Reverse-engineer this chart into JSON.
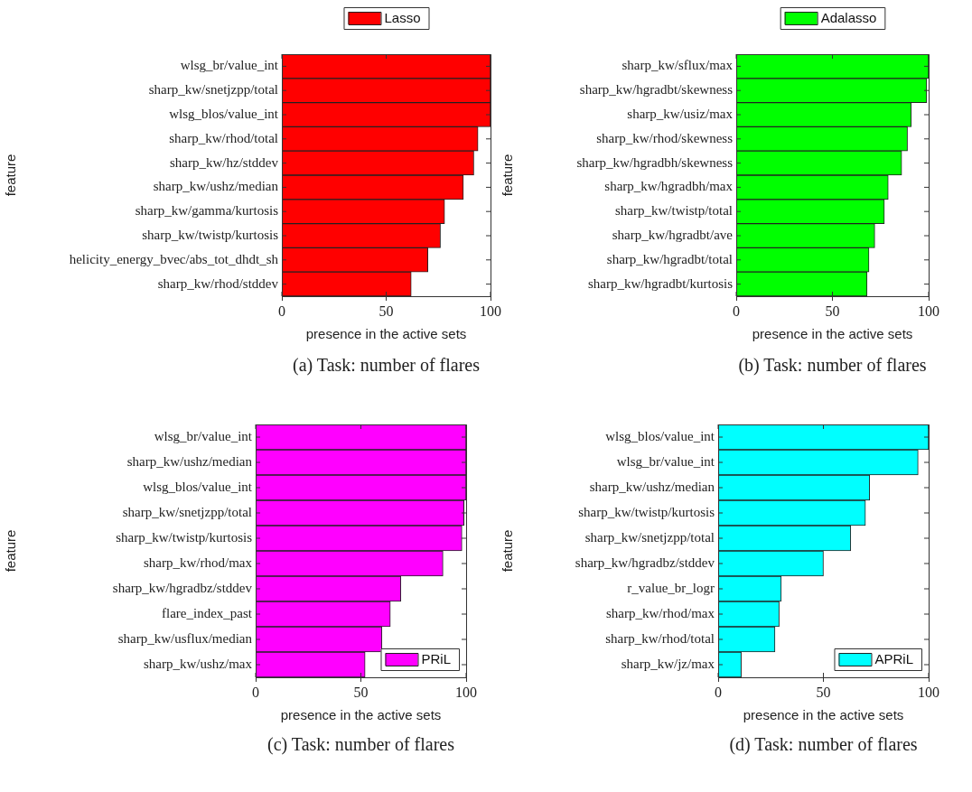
{
  "chart_data": [
    {
      "type": "bar",
      "orientation": "horizontal",
      "categories": [
        "wlsg_br/value_int",
        "sharp_kw/snetjzpp/total",
        "wlsg_blos/value_int",
        "sharp_kw/rhod/total",
        "sharp_kw/hz/stddev",
        "sharp_kw/ushz/median",
        "sharp_kw/gamma/kurtosis",
        "sharp_kw/twistp/kurtosis",
        "helicity_energy_bvec/abs_tot_dhdt_sh",
        "sharp_kw/rhod/stddev"
      ],
      "series": [
        {
          "name": "Lasso",
          "color": "#ff0000",
          "values": [
            100,
            100,
            100,
            94,
            92,
            87,
            78,
            76,
            70,
            62
          ]
        }
      ],
      "xlim": [
        0,
        100
      ],
      "xticks": [
        0,
        50,
        100
      ],
      "xlabel": "presence in the active sets",
      "ylabel": "feature",
      "legend": "top",
      "annotations": [
        "(a)  Task: number of flares"
      ]
    },
    {
      "type": "bar",
      "orientation": "horizontal",
      "categories": [
        "sharp_kw/sflux/max",
        "sharp_kw/hgradbt/skewness",
        "sharp_kw/usiz/max",
        "sharp_kw/rhod/skewness",
        "sharp_kw/hgradbh/skewness",
        "sharp_kw/hgradbh/max",
        "sharp_kw/twistp/total",
        "sharp_kw/hgradbt/ave",
        "sharp_kw/hgradbt/total",
        "sharp_kw/hgradbt/kurtosis"
      ],
      "series": [
        {
          "name": "Adalasso",
          "color": "#00ff00",
          "values": [
            100,
            99,
            91,
            89,
            86,
            79,
            77,
            72,
            69,
            68
          ]
        }
      ],
      "xlim": [
        0,
        100
      ],
      "xticks": [
        0,
        50,
        100
      ],
      "xlabel": "presence in the active sets",
      "ylabel": "feature",
      "legend": "top",
      "annotations": [
        "(b)  Task: number of flares"
      ]
    },
    {
      "type": "bar",
      "orientation": "horizontal",
      "categories": [
        "wlsg_br/value_int",
        "sharp_kw/ushz/median",
        "wlsg_blos/value_int",
        "sharp_kw/snetjzpp/total",
        "sharp_kw/twistp/kurtosis",
        "sharp_kw/rhod/max",
        "sharp_kw/hgradbz/stddev",
        "flare_index_past",
        "sharp_kw/usflux/median",
        "sharp_kw/ushz/max"
      ],
      "series": [
        {
          "name": "PRiL",
          "color": "#ff00ff",
          "values": [
            100,
            100,
            100,
            99,
            98,
            89,
            69,
            64,
            60,
            52
          ]
        }
      ],
      "xlim": [
        0,
        100
      ],
      "xticks": [
        0,
        50,
        100
      ],
      "xlabel": "presence in the active sets",
      "ylabel": "feature",
      "legend": "bottom right",
      "annotations": [
        "(c)  Task: number of flares"
      ]
    },
    {
      "type": "bar",
      "orientation": "horizontal",
      "categories": [
        "wlsg_blos/value_int",
        "wlsg_br/value_int",
        "sharp_kw/ushz/median",
        "sharp_kw/twistp/kurtosis",
        "sharp_kw/snetjzpp/total",
        "sharp_kw/hgradbz/stddev",
        "r_value_br_logr",
        "sharp_kw/rhod/max",
        "sharp_kw/rhod/total",
        "sharp_kw/jz/max"
      ],
      "series": [
        {
          "name": "APRiL",
          "color": "#00ffff",
          "values": [
            100,
            95,
            72,
            70,
            63,
            50,
            30,
            29,
            27,
            11
          ]
        }
      ],
      "xlim": [
        0,
        100
      ],
      "xticks": [
        0,
        50,
        100
      ],
      "xlabel": "presence in the active sets",
      "ylabel": "feature",
      "legend": "bottom right",
      "annotations": [
        "(d)  Task: number of flares"
      ]
    }
  ]
}
